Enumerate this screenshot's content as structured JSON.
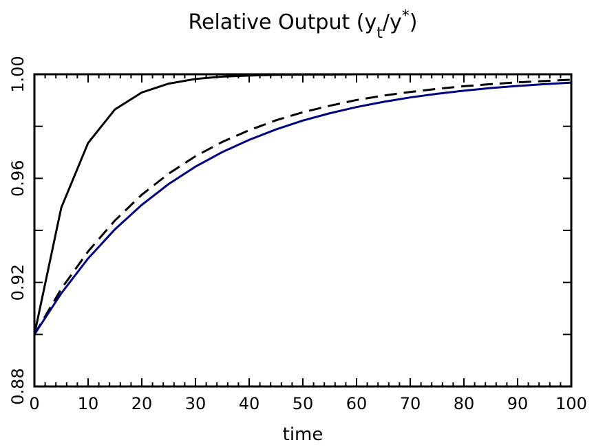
{
  "chart_data": {
    "type": "line",
    "title": [
      {
        "text": "Relative Output (y"
      },
      {
        "text": "t",
        "script": "sub"
      },
      {
        "text": "/y"
      },
      {
        "text": "*",
        "script": "sup"
      },
      {
        "text": ")"
      }
    ],
    "x_label": "time",
    "x": [
      0,
      5,
      10,
      15,
      20,
      25,
      30,
      35,
      40,
      45,
      50,
      55,
      60,
      65,
      70,
      75,
      80,
      85,
      90,
      95,
      100
    ],
    "series": [
      {
        "color": "#000000",
        "dash": false,
        "values": [
          0.9,
          0.9487,
          0.9736,
          0.9865,
          0.993,
          0.9964,
          0.9982,
          0.9991,
          0.9995,
          0.9998,
          0.9999,
          0.9999,
          1.0,
          1.0,
          1.0,
          1.0,
          1.0,
          1.0,
          1.0,
          1.0,
          1.0
        ]
      },
      {
        "color": "#000000",
        "dash": true,
        "values": [
          0.9,
          0.9175,
          0.9319,
          0.9438,
          0.9537,
          0.9618,
          0.9685,
          0.974,
          0.9785,
          0.9823,
          0.9854,
          0.9879,
          0.9901,
          0.9918,
          0.9932,
          0.9944,
          0.9954,
          0.9962,
          0.9969,
          0.9974,
          0.9979
        ]
      },
      {
        "color": "#000080",
        "dash": false,
        "values": [
          0.9,
          0.9158,
          0.9292,
          0.9404,
          0.9498,
          0.9578,
          0.9645,
          0.9701,
          0.9748,
          0.9788,
          0.9822,
          0.985,
          0.9874,
          0.9894,
          0.9911,
          0.9925,
          0.9937,
          0.9947,
          0.9955,
          0.9962,
          0.9968
        ]
      }
    ],
    "xlim": [
      0,
      100
    ],
    "xticks": [
      0,
      10,
      20,
      30,
      40,
      50,
      60,
      70,
      80,
      90,
      100
    ],
    "x_minor_divisions": 5,
    "ylim": [
      0.88,
      1.0
    ],
    "yticks": [
      0.88,
      0.92,
      0.96,
      {
        "value": 1.0,
        "label": "1.00"
      }
    ],
    "y_minor_divisions": 2,
    "grid": false
  }
}
